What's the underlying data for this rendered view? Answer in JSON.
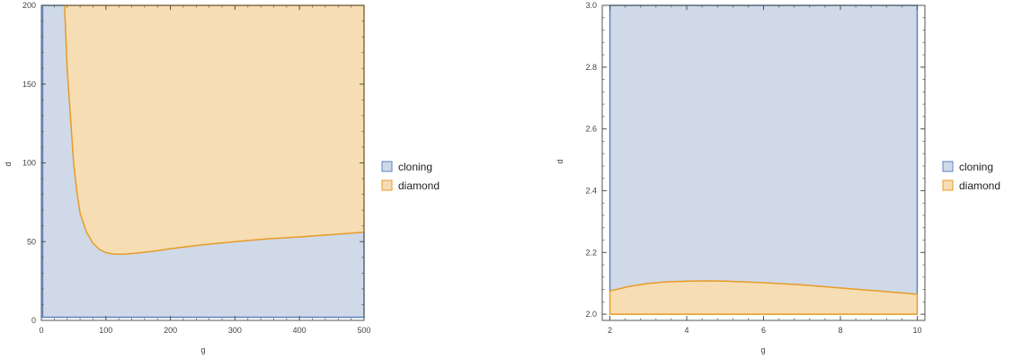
{
  "colors": {
    "cloning_fill": "#cfd9e8",
    "cloning_edge": "#5b83c2",
    "diamond_fill": "#f6ddb3",
    "diamond_edge": "#e89b25",
    "frame": "#555555"
  },
  "chart_data": [
    {
      "type": "area",
      "title": "",
      "xlabel": "g",
      "ylabel": "d",
      "xlim": [
        0,
        500
      ],
      "ylim": [
        0,
        200
      ],
      "x_ticks": [
        "0",
        "100",
        "200",
        "300",
        "400",
        "500"
      ],
      "y_ticks": [
        "0",
        "50",
        "100",
        "150",
        "200"
      ],
      "region_domain": {
        "x": [
          2,
          500
        ],
        "y": [
          2,
          200
        ]
      },
      "series": [
        {
          "name": "cloning",
          "region": "below boundary"
        },
        {
          "name": "diamond",
          "region": "above boundary"
        }
      ],
      "boundary": {
        "x": [
          36,
          40,
          45,
          50,
          55,
          60,
          70,
          80,
          90,
          100,
          110,
          120,
          130,
          150,
          175,
          200,
          250,
          300,
          350,
          400,
          450,
          500
        ],
        "y": [
          200,
          160,
          130,
          100,
          82,
          68,
          56,
          49,
          45,
          43,
          42.2,
          42,
          42.1,
          42.8,
          44,
          45.5,
          48,
          50,
          51.8,
          53,
          54.5,
          56
        ]
      },
      "legend": {
        "position": "right",
        "entries": [
          "cloning",
          "diamond"
        ]
      },
      "grid": false
    },
    {
      "type": "area",
      "title": "",
      "xlabel": "g",
      "ylabel": "d",
      "xlim": [
        1.8,
        10.2
      ],
      "ylim": [
        1.98,
        3.0
      ],
      "x_ticks": [
        "2",
        "4",
        "6",
        "8",
        "10"
      ],
      "y_ticks": [
        "2.0",
        "2.2",
        "2.4",
        "2.6",
        "2.8",
        "3.0"
      ],
      "region_domain": {
        "x": [
          2,
          10
        ],
        "y": [
          2,
          3
        ]
      },
      "series": [
        {
          "name": "cloning",
          "region": "above boundary"
        },
        {
          "name": "diamond",
          "region": "below boundary"
        }
      ],
      "boundary": {
        "x": [
          2,
          2.5,
          3,
          3.5,
          4,
          4.5,
          5,
          6,
          7,
          8,
          9,
          10
        ],
        "y": [
          2.075,
          2.09,
          2.1,
          2.105,
          2.107,
          2.108,
          2.107,
          2.102,
          2.095,
          2.085,
          2.075,
          2.065
        ]
      },
      "legend": {
        "position": "right",
        "entries": [
          "cloning",
          "diamond"
        ]
      },
      "grid": false
    }
  ]
}
